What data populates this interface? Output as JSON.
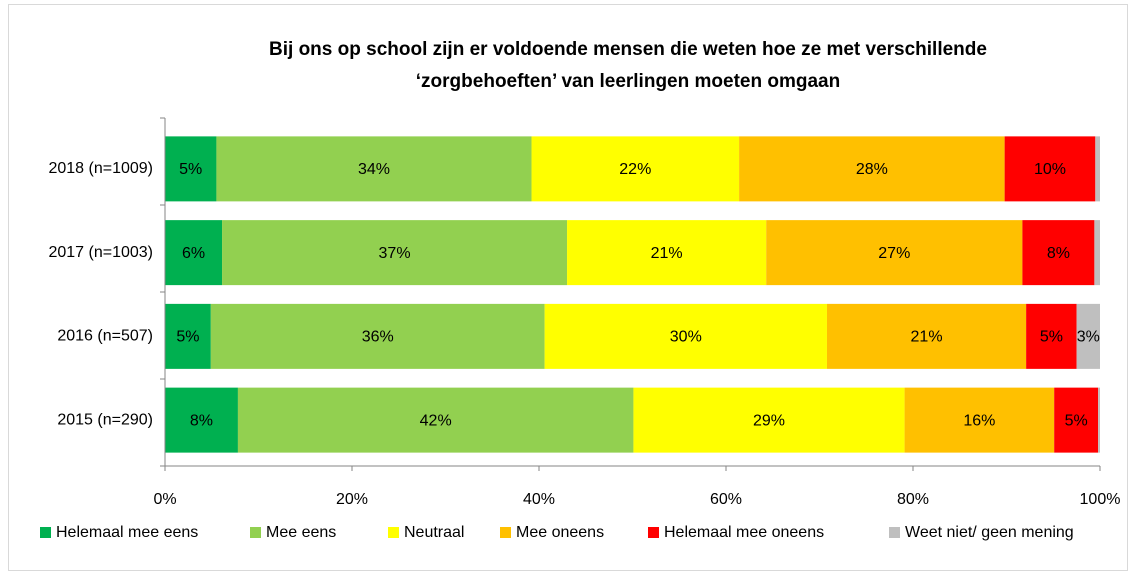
{
  "chart_data": {
    "type": "stacked-bar-horizontal",
    "title": [
      "Bij ons op school zijn er voldoende mensen die weten hoe ze met verschillende",
      "‘zorgbehoeften’ van leerlingen moeten omgaan"
    ],
    "categories": [
      "2018 (n=1009)",
      "2017 (n=1003)",
      "2016 (n=507)",
      "2015 (n=290)"
    ],
    "series": [
      {
        "name": "Helemaal mee eens",
        "color": "#00b050",
        "values": [
          5.5,
          6.1,
          4.9,
          7.8
        ],
        "value_labels": [
          "5%",
          "6%",
          "5%",
          "8%"
        ]
      },
      {
        "name": "Mee eens",
        "color": "#92d050",
        "values": [
          33.7,
          36.9,
          35.7,
          42.3
        ],
        "value_labels": [
          "34%",
          "37%",
          "36%",
          "42%"
        ]
      },
      {
        "name": "Neutraal",
        "color": "#ffff00",
        "values": [
          22.2,
          21.3,
          30.2,
          29.0
        ],
        "value_labels": [
          "22%",
          "21%",
          "30%",
          "29%"
        ]
      },
      {
        "name": "Mee oneens",
        "color": "#ffc000",
        "values": [
          28.4,
          27.4,
          21.3,
          16.0
        ],
        "value_labels": [
          "28%",
          "27%",
          "21%",
          "16%"
        ]
      },
      {
        "name": "Helemaal mee oneens",
        "color": "#ff0000",
        "values": [
          9.7,
          7.7,
          5.4,
          4.7
        ],
        "value_labels": [
          "10%",
          "8%",
          "5%",
          "5%"
        ]
      },
      {
        "name": "Weet niet/ geen mening",
        "color": "#bfbfbf",
        "values": [
          0.5,
          0.6,
          2.5,
          0.2
        ],
        "value_labels": [
          null,
          null,
          "3%",
          null
        ]
      }
    ],
    "xlim": [
      0,
      100
    ],
    "xticks": [
      {
        "value": 0,
        "label": "0%"
      },
      {
        "value": 20,
        "label": "20%"
      },
      {
        "value": 40,
        "label": "40%"
      },
      {
        "value": 60,
        "label": "60%"
      },
      {
        "value": 80,
        "label": "80%"
      },
      {
        "value": 100,
        "label": "100%"
      }
    ],
    "legend": "bottom"
  }
}
